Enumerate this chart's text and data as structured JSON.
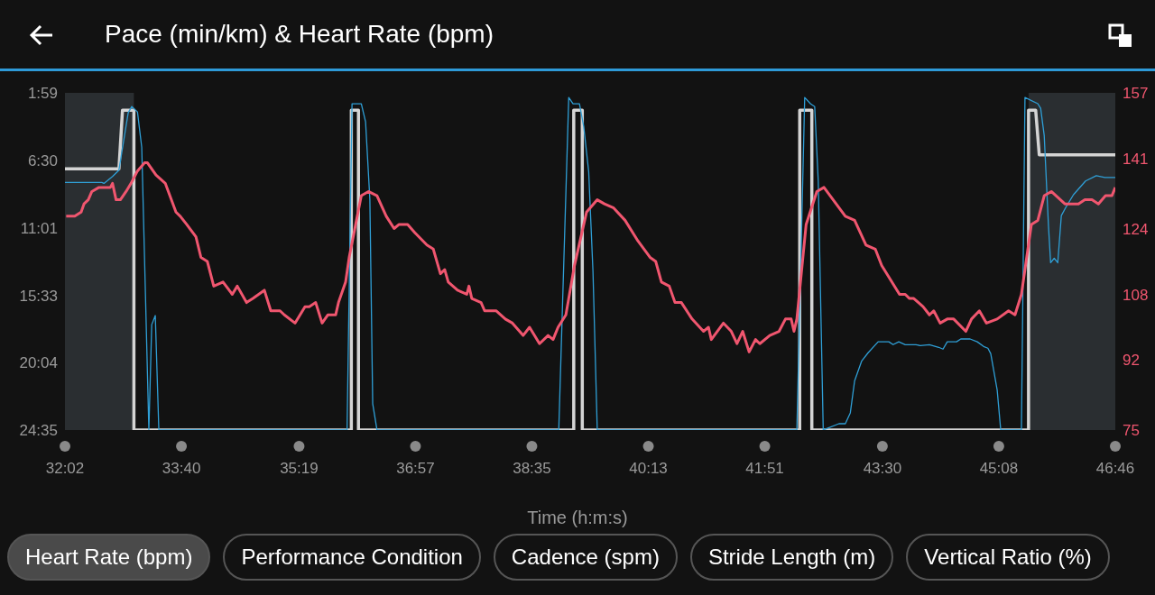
{
  "chart_data": {
    "type": "line",
    "title": "Pace (min/km) & Heart Rate (bpm)",
    "xlabel": "Time (h:m:s)",
    "xlim": [
      32.033,
      46.767
    ],
    "xticks": [
      {
        "value": 32.033,
        "label": "32:02"
      },
      {
        "value": 33.667,
        "label": "33:40"
      },
      {
        "value": 35.317,
        "label": "35:19"
      },
      {
        "value": 36.95,
        "label": "36:57"
      },
      {
        "value": 38.583,
        "label": "38:35"
      },
      {
        "value": 40.217,
        "label": "40:13"
      },
      {
        "value": 41.85,
        "label": "41:51"
      },
      {
        "value": 43.5,
        "label": "43:30"
      },
      {
        "value": 45.133,
        "label": "45:08"
      },
      {
        "value": 46.767,
        "label": "46:46"
      }
    ],
    "ylim": [
      24.583,
      1.983
    ],
    "yticks": [
      {
        "value": 1.983,
        "label": "1:59"
      },
      {
        "value": 6.5,
        "label": "6:30"
      },
      {
        "value": 11.017,
        "label": "11:01"
      },
      {
        "value": 15.55,
        "label": "15:33"
      },
      {
        "value": 20.067,
        "label": "20:04"
      },
      {
        "value": 24.583,
        "label": "24:35"
      }
    ],
    "y2lim": [
      75,
      157
    ],
    "y2ticks": [
      75,
      92,
      108,
      124,
      141,
      157
    ],
    "series": [
      {
        "type": "step",
        "color": "#d4d4d4",
        "x": [
          32.033,
          32.79,
          32.84,
          33.0,
          33.0,
          36.05,
          36.05,
          36.15,
          36.15,
          39.17,
          39.17,
          39.29,
          39.29,
          42.34,
          42.34,
          42.51,
          42.51,
          45.55,
          45.55,
          45.65,
          45.7,
          46.767
        ],
        "values": [
          7.08,
          7.08,
          3.14,
          3.14,
          24.58,
          24.58,
          3.14,
          3.14,
          24.58,
          24.58,
          3.14,
          3.14,
          24.58,
          24.58,
          3.14,
          3.14,
          24.58,
          24.58,
          3.14,
          3.14,
          6.13,
          6.13
        ]
      },
      {
        "color": "#2f9fd6",
        "x": [
          32.033,
          32.55,
          32.58,
          32.7,
          32.79,
          32.92,
          32.97,
          33.05,
          33.11,
          33.21,
          33.25,
          33.3,
          33.35,
          35.99,
          36.06,
          36.19,
          36.25,
          36.31,
          36.35,
          36.41,
          38.96,
          39.1,
          39.16,
          39.25,
          39.31,
          39.38,
          39.44,
          39.5,
          42.3,
          42.41,
          42.49,
          42.55,
          42.6,
          42.67,
          42.89,
          42.98,
          43.05,
          43.11,
          43.21,
          43.3,
          43.44,
          43.59,
          43.65,
          43.73,
          43.82,
          43.97,
          44.03,
          44.16,
          44.29,
          44.35,
          44.41,
          44.54,
          44.6,
          44.73,
          44.83,
          44.92,
          44.98,
          45.02,
          45.11,
          45.16,
          45.45,
          45.5,
          45.68,
          45.72,
          45.77,
          45.83,
          45.86,
          45.91,
          45.96,
          46.01,
          46.08,
          46.18,
          46.35,
          46.5,
          46.62,
          46.767
        ],
        "values": [
          7.99,
          7.99,
          8.05,
          7.59,
          7.16,
          3.32,
          2.9,
          3.26,
          5.64,
          24.58,
          17.52,
          16.91,
          24.58,
          24.58,
          2.71,
          2.71,
          3.93,
          9.11,
          22.82,
          24.58,
          24.58,
          2.29,
          2.71,
          2.71,
          4.24,
          7.28,
          13.98,
          24.58,
          24.58,
          2.29,
          2.71,
          2.9,
          7.89,
          24.58,
          24.16,
          24.16,
          23.43,
          21.29,
          19.95,
          19.4,
          18.67,
          18.67,
          18.86,
          18.67,
          18.86,
          18.86,
          18.92,
          18.86,
          19.04,
          19.16,
          18.67,
          18.67,
          18.48,
          18.48,
          18.67,
          18.98,
          19.1,
          19.47,
          21.9,
          24.58,
          24.58,
          2.29,
          2.71,
          3.02,
          4.85,
          10.94,
          13.37,
          13.07,
          13.37,
          10.21,
          9.6,
          8.81,
          7.89,
          7.53,
          7.65,
          7.65
        ]
      },
      {
        "axis": "y2",
        "color": "#f0566f",
        "x": [
          32.05,
          32.11,
          32.17,
          32.26,
          32.3,
          32.36,
          32.41,
          32.51,
          32.67,
          32.7,
          32.75,
          32.81,
          32.89,
          32.96,
          33.05,
          33.15,
          33.19,
          33.31,
          33.44,
          33.59,
          33.65,
          33.74,
          33.87,
          33.94,
          34.03,
          34.12,
          34.25,
          34.38,
          34.45,
          34.58,
          34.67,
          34.83,
          34.92,
          35.05,
          35.11,
          35.26,
          35.4,
          35.46,
          35.55,
          35.64,
          35.72,
          35.83,
          35.87,
          35.97,
          36.02,
          36.19,
          36.29,
          36.41,
          36.54,
          36.65,
          36.72,
          36.84,
          36.94,
          37.11,
          37.2,
          37.3,
          37.36,
          37.41,
          37.54,
          37.67,
          37.7,
          37.74,
          37.87,
          37.92,
          38.08,
          38.21,
          38.31,
          38.46,
          38.55,
          38.69,
          38.81,
          38.88,
          38.95,
          39.06,
          39.18,
          39.35,
          39.5,
          39.6,
          39.73,
          39.89,
          40.07,
          40.24,
          40.32,
          40.4,
          40.51,
          40.59,
          40.68,
          40.83,
          40.99,
          41.06,
          41.1,
          41.27,
          41.38,
          41.46,
          41.54,
          41.63,
          41.72,
          41.78,
          41.92,
          42.05,
          42.14,
          42.22,
          42.26,
          42.3,
          42.43,
          42.58,
          42.68,
          42.98,
          43.11,
          43.27,
          43.4,
          43.49,
          43.74,
          43.82,
          43.88,
          43.94,
          44.07,
          44.16,
          44.22,
          44.31,
          44.41,
          44.5,
          44.67,
          44.75,
          44.86,
          44.96,
          45.11,
          45.27,
          45.36,
          45.45,
          45.59,
          45.68,
          45.77,
          45.87,
          46.06,
          46.25,
          46.34,
          46.44,
          46.53,
          46.63,
          46.72,
          46.767
        ],
        "values": [
          127,
          127,
          127,
          128,
          130,
          131,
          133,
          134,
          134,
          135,
          131,
          131,
          133,
          135,
          138,
          140,
          140,
          137,
          135,
          128,
          127,
          125,
          122,
          117,
          116,
          110,
          111,
          108,
          110,
          106,
          107,
          109,
          104,
          104,
          103,
          101,
          105,
          105,
          106,
          101,
          103,
          103,
          106,
          111,
          117,
          132,
          133,
          132,
          127,
          124,
          125,
          125,
          123,
          120,
          119,
          113,
          114,
          111,
          109,
          108,
          110,
          107,
          106,
          104,
          104,
          102,
          101,
          98,
          100,
          96,
          98,
          97,
          100,
          103,
          115,
          128,
          131,
          130,
          129,
          126,
          121,
          117,
          116,
          111,
          110,
          106,
          106,
          102,
          99,
          100,
          97,
          101,
          99,
          96,
          99,
          94,
          97,
          96,
          98,
          99,
          102,
          102,
          99,
          102,
          125,
          133,
          134,
          127,
          126,
          120,
          119,
          115,
          108,
          108,
          107,
          107,
          105,
          103,
          104,
          101,
          102,
          102,
          99,
          102,
          104,
          101,
          102,
          104,
          103,
          108,
          125,
          126,
          132,
          133,
          130,
          130,
          131,
          131,
          130,
          132,
          132,
          134
        ]
      }
    ],
    "bands": [
      {
        "axis": "x",
        "from": 32.033,
        "to": 33.0,
        "color": "#2a2e31"
      },
      {
        "axis": "x",
        "from": 45.55,
        "to": 46.767,
        "color": "#2a2e31"
      }
    ],
    "annotations": [
      "Heart Rate (bpm)",
      "Performance Condition",
      "Cadence (spm)",
      "Stride Length (m)",
      "Vertical Ratio (%)"
    ]
  }
}
